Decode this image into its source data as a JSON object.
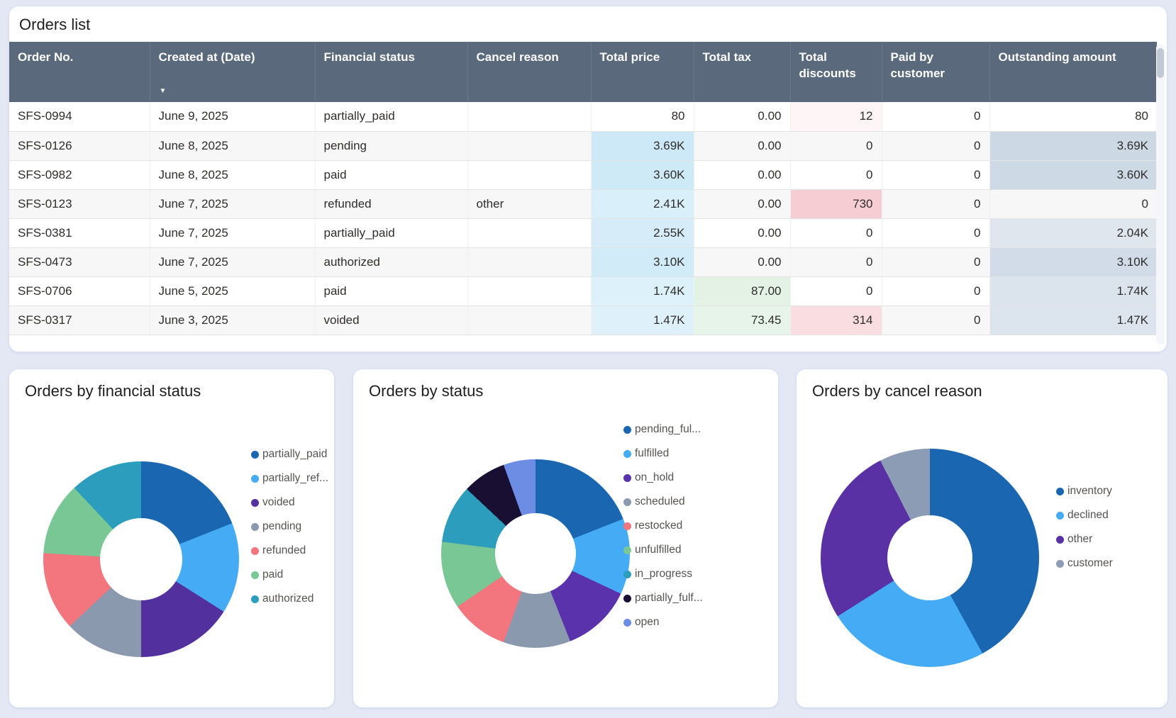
{
  "page": {
    "background": "#e4e7f4",
    "header_bar_color": "#5a6a7c"
  },
  "orders_table": {
    "title": "Orders list",
    "sort_icon": "▼",
    "sorted_column_index": 1,
    "sort_direction": "desc",
    "columns": [
      "Order No.",
      "Created at (Date)",
      "Financial status",
      "Cancel reason",
      "Total price",
      "Total tax",
      "Total discounts",
      "Paid by customer",
      "Outstanding amount"
    ],
    "numeric_from_index": 4,
    "rows": [
      {
        "cells": [
          "SFS-0994",
          "June 9, 2025",
          "partially_paid",
          "",
          "80",
          "0.00",
          "12",
          "0",
          "80"
        ],
        "bg": [
          null,
          null,
          null,
          null,
          null,
          null,
          "#fdf5f6",
          null,
          null
        ]
      },
      {
        "cells": [
          "SFS-0126",
          "June 8, 2025",
          "pending",
          "",
          "3.69K",
          "0.00",
          "0",
          "0",
          "3.69K"
        ],
        "bg": [
          null,
          null,
          null,
          null,
          "#cde9f7",
          null,
          null,
          null,
          "#ccd9e4"
        ]
      },
      {
        "cells": [
          "SFS-0982",
          "June 8, 2025",
          "paid",
          "",
          "3.60K",
          "0.00",
          "0",
          "0",
          "3.60K"
        ],
        "bg": [
          null,
          null,
          null,
          null,
          "#cfeaf7",
          null,
          null,
          null,
          "#cdd9e4"
        ]
      },
      {
        "cells": [
          "SFS-0123",
          "June 7, 2025",
          "refunded",
          "other",
          "2.41K",
          "0.00",
          "730",
          "0",
          "0"
        ],
        "bg": [
          null,
          null,
          null,
          null,
          "#d9effa",
          null,
          "#f5cdd3",
          null,
          null
        ]
      },
      {
        "cells": [
          "SFS-0381",
          "June 7, 2025",
          "partially_paid",
          "",
          "2.55K",
          "0.00",
          "0",
          "0",
          "2.04K"
        ],
        "bg": [
          null,
          null,
          null,
          null,
          "#d6edf9",
          null,
          null,
          null,
          "#dfe6ee"
        ]
      },
      {
        "cells": [
          "SFS-0473",
          "June 7, 2025",
          "authorized",
          "",
          "3.10K",
          "0.00",
          "0",
          "0",
          "3.10K"
        ],
        "bg": [
          null,
          null,
          null,
          null,
          "#d2ebf8",
          null,
          null,
          null,
          "#d2dce8"
        ]
      },
      {
        "cells": [
          "SFS-0706",
          "June 5, 2025",
          "paid",
          "",
          "1.74K",
          "87.00",
          "0",
          "0",
          "1.74K"
        ],
        "bg": [
          null,
          null,
          null,
          null,
          "#ddf1fb",
          "#e4f2e6",
          null,
          null,
          "#dbe3ed"
        ]
      },
      {
        "cells": [
          "SFS-0317",
          "June 3, 2025",
          "voided",
          "",
          "1.47K",
          "73.45",
          "314",
          "0",
          "1.47K"
        ],
        "bg": [
          null,
          null,
          null,
          null,
          "#def1fb",
          "#e7f4e9",
          "#f9dde1",
          null,
          "#dce4ee"
        ]
      }
    ]
  },
  "chart_data": [
    {
      "type": "pie",
      "subtype": "donut",
      "title": "Orders by financial status",
      "legend_position": "right",
      "slices": [
        {
          "label": "partially_paid",
          "percent": 19,
          "color": "#1b66b1"
        },
        {
          "label": "partially_ref...",
          "percent": 15,
          "color": "#45abf4"
        },
        {
          "label": "voided",
          "percent": 16,
          "color": "#52309e"
        },
        {
          "label": "pending",
          "percent": 13,
          "color": "#8a99ae"
        },
        {
          "label": "refunded",
          "percent": 13,
          "color": "#f3767e"
        },
        {
          "label": "paid",
          "percent": 12,
          "color": "#79c795"
        },
        {
          "label": "authorized",
          "percent": 12,
          "color": "#2d9dbd"
        }
      ]
    },
    {
      "type": "pie",
      "subtype": "donut",
      "title": "Orders by status",
      "legend_position": "right",
      "slices": [
        {
          "label": "pending_ful...",
          "percent": 19,
          "color": "#1b66b1"
        },
        {
          "label": "fulfilled",
          "percent": 13,
          "color": "#45abf4"
        },
        {
          "label": "on_hold",
          "percent": 12,
          "color": "#5a32ab"
        },
        {
          "label": "scheduled",
          "percent": 11.5,
          "color": "#8a99ae"
        },
        {
          "label": "restocked",
          "percent": 10,
          "color": "#f3767e"
        },
        {
          "label": "unfulfilled",
          "percent": 11.5,
          "color": "#79c795"
        },
        {
          "label": "in_progress",
          "percent": 10,
          "color": "#2d9dbd"
        },
        {
          "label": "partially_fulf...",
          "percent": 7.5,
          "color": "#190f33"
        },
        {
          "label": "open",
          "percent": 5.5,
          "color": "#6d8de4"
        }
      ]
    },
    {
      "type": "pie",
      "subtype": "donut",
      "title": "Orders by cancel reason",
      "legend_position": "right",
      "slices": [
        {
          "label": "inventory",
          "percent": 42,
          "color": "#1b66b1"
        },
        {
          "label": "declined",
          "percent": 24,
          "color": "#45abf4"
        },
        {
          "label": "other",
          "percent": 26.5,
          "color": "#5a31a5"
        },
        {
          "label": "customer",
          "percent": 7.5,
          "color": "#8c9cb5"
        }
      ]
    }
  ]
}
